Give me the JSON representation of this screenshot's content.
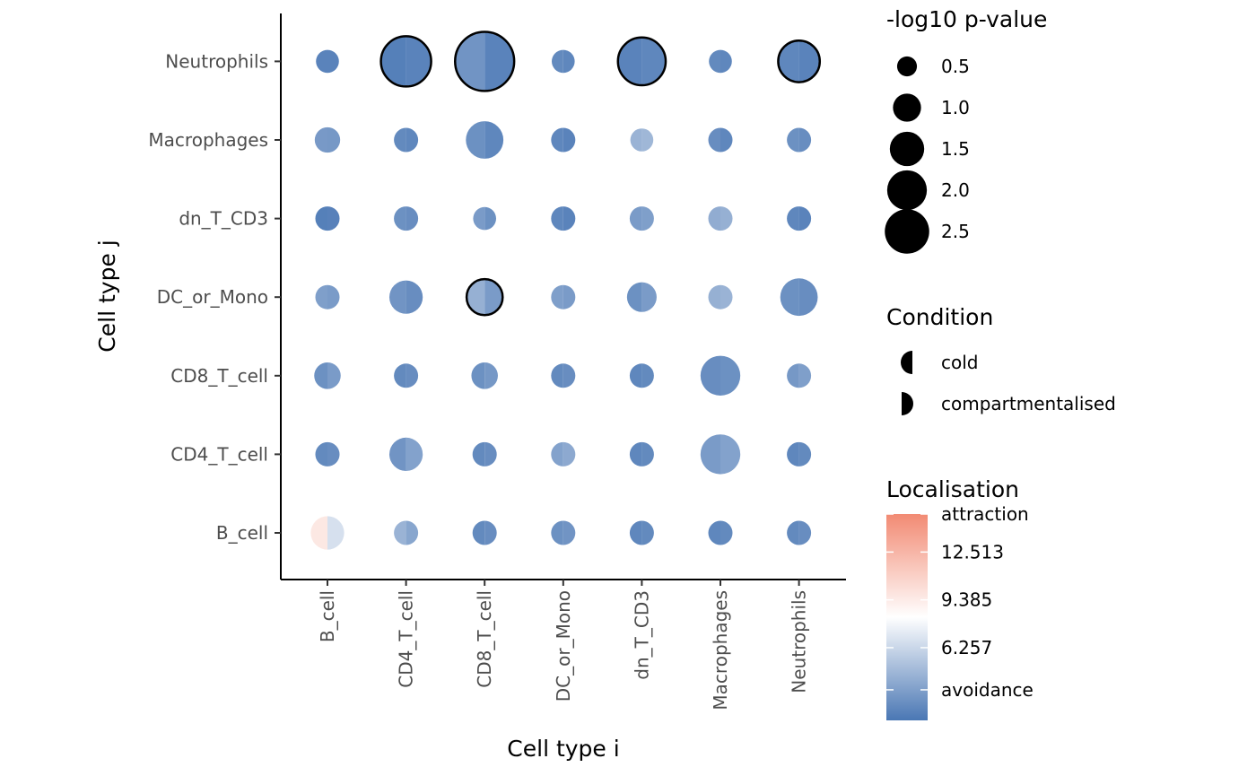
{
  "chart_data": {
    "type": "scatter",
    "subtype": "split-dot-matrix",
    "xlabel": "Cell type i",
    "ylabel": "Cell type j",
    "x_categories": [
      "B_cell",
      "CD4_T_cell",
      "CD8_T_cell",
      "DC_or_Mono",
      "dn_T_CD3",
      "Macrophages",
      "Neutrophils"
    ],
    "y_categories": [
      "B_cell",
      "CD4_T_cell",
      "CD8_T_cell",
      "DC_or_Mono",
      "dn_T_CD3",
      "Macrophages",
      "Neutrophils"
    ],
    "conditions": [
      "cold",
      "compartmentalised"
    ],
    "size_legend": {
      "title": "-log10 p-value",
      "breaks": [
        0.5,
        1.0,
        1.5,
        2.0,
        2.5
      ],
      "labels": [
        "0.5",
        "1.0",
        "1.5",
        "2.0",
        "2.5"
      ]
    },
    "shape_legend": {
      "title": "Condition",
      "labels": [
        "cold",
        "compartmentalised"
      ]
    },
    "color_legend": {
      "title": "Localisation",
      "labels": [
        "attraction",
        "12.513",
        "9.385",
        "6.257",
        "avoidance"
      ],
      "label_values": [
        15.0,
        12.513,
        9.385,
        6.257,
        3.5
      ],
      "min": 1.5,
      "max": 15.0,
      "low_color": "#4a77b4",
      "mid_color": "#ffffff",
      "high_color": "#f28a73",
      "midpoint": 9.385
    },
    "outline_color": "#000000",
    "points": [
      {
        "x": "B_cell",
        "y": "Neutrophils",
        "cold": {
          "pval": 0.45,
          "loc": 2.2
        },
        "compartmentalised": {
          "pval": 0.45,
          "loc": 2.2
        },
        "significant": false
      },
      {
        "x": "CD4_T_cell",
        "y": "Neutrophils",
        "cold": {
          "pval": 2.0,
          "loc": 2.0
        },
        "compartmentalised": {
          "pval": 2.0,
          "loc": 2.2
        },
        "significant": true
      },
      {
        "x": "CD8_T_cell",
        "y": "Neutrophils",
        "cold": {
          "pval": 2.8,
          "loc": 3.2
        },
        "compartmentalised": {
          "pval": 2.8,
          "loc": 2.2
        },
        "significant": true
      },
      {
        "x": "DC_or_Mono",
        "y": "Neutrophils",
        "cold": {
          "pval": 0.45,
          "loc": 2.6
        },
        "compartmentalised": {
          "pval": 0.45,
          "loc": 2.4
        },
        "significant": false
      },
      {
        "x": "dn_T_CD3",
        "y": "Neutrophils",
        "cold": {
          "pval": 1.8,
          "loc": 2.2
        },
        "compartmentalised": {
          "pval": 1.8,
          "loc": 2.4
        },
        "significant": true
      },
      {
        "x": "Macrophages",
        "y": "Neutrophils",
        "cold": {
          "pval": 0.45,
          "loc": 2.6
        },
        "compartmentalised": {
          "pval": 0.45,
          "loc": 2.4
        },
        "significant": false
      },
      {
        "x": "Neutrophils",
        "y": "Neutrophils",
        "cold": {
          "pval": 1.35,
          "loc": 2.4
        },
        "compartmentalised": {
          "pval": 1.35,
          "loc": 2.2
        },
        "significant": true
      },
      {
        "x": "B_cell",
        "y": "Macrophages",
        "cold": {
          "pval": 0.55,
          "loc": 3.5
        },
        "compartmentalised": {
          "pval": 0.55,
          "loc": 3.4
        },
        "significant": false
      },
      {
        "x": "CD4_T_cell",
        "y": "Macrophages",
        "cold": {
          "pval": 0.5,
          "loc": 2.6
        },
        "compartmentalised": {
          "pval": 0.5,
          "loc": 2.4
        },
        "significant": false
      },
      {
        "x": "CD8_T_cell",
        "y": "Macrophages",
        "cold": {
          "pval": 1.2,
          "loc": 3.0
        },
        "compartmentalised": {
          "pval": 1.2,
          "loc": 2.4
        },
        "significant": false
      },
      {
        "x": "DC_or_Mono",
        "y": "Macrophages",
        "cold": {
          "pval": 0.5,
          "loc": 2.4
        },
        "compartmentalised": {
          "pval": 0.5,
          "loc": 2.2
        },
        "significant": false
      },
      {
        "x": "dn_T_CD3",
        "y": "Macrophages",
        "cold": {
          "pval": 0.45,
          "loc": 5.0
        },
        "compartmentalised": {
          "pval": 0.45,
          "loc": 5.2
        },
        "significant": false
      },
      {
        "x": "Macrophages",
        "y": "Macrophages",
        "cold": {
          "pval": 0.5,
          "loc": 2.8
        },
        "compartmentalised": {
          "pval": 0.5,
          "loc": 2.4
        },
        "significant": false
      },
      {
        "x": "Neutrophils",
        "y": "Macrophages",
        "cold": {
          "pval": 0.5,
          "loc": 3.0
        },
        "compartmentalised": {
          "pval": 0.5,
          "loc": 2.8
        },
        "significant": false
      },
      {
        "x": "B_cell",
        "y": "dn_T_CD3",
        "cold": {
          "pval": 0.5,
          "loc": 2.0
        },
        "compartmentalised": {
          "pval": 0.5,
          "loc": 2.1
        },
        "significant": false
      },
      {
        "x": "CD4_T_cell",
        "y": "dn_T_CD3",
        "cold": {
          "pval": 0.5,
          "loc": 3.0
        },
        "compartmentalised": {
          "pval": 0.5,
          "loc": 2.8
        },
        "significant": false
      },
      {
        "x": "CD8_T_cell",
        "y": "dn_T_CD3",
        "cold": {
          "pval": 0.45,
          "loc": 3.6
        },
        "compartmentalised": {
          "pval": 0.45,
          "loc": 3.0
        },
        "significant": false
      },
      {
        "x": "DC_or_Mono",
        "y": "dn_T_CD3",
        "cold": {
          "pval": 0.5,
          "loc": 2.4
        },
        "compartmentalised": {
          "pval": 0.5,
          "loc": 2.2
        },
        "significant": false
      },
      {
        "x": "dn_T_CD3",
        "y": "dn_T_CD3",
        "cold": {
          "pval": 0.5,
          "loc": 3.6
        },
        "compartmentalised": {
          "pval": 0.5,
          "loc": 3.8
        },
        "significant": false
      },
      {
        "x": "Macrophages",
        "y": "dn_T_CD3",
        "cold": {
          "pval": 0.5,
          "loc": 4.6
        },
        "compartmentalised": {
          "pval": 0.5,
          "loc": 4.8
        },
        "significant": false
      },
      {
        "x": "Neutrophils",
        "y": "dn_T_CD3",
        "cold": {
          "pval": 0.5,
          "loc": 2.4
        },
        "compartmentalised": {
          "pval": 0.5,
          "loc": 2.2
        },
        "significant": false
      },
      {
        "x": "B_cell",
        "y": "DC_or_Mono",
        "cold": {
          "pval": 0.5,
          "loc": 3.8
        },
        "compartmentalised": {
          "pval": 0.5,
          "loc": 3.6
        },
        "significant": false
      },
      {
        "x": "CD4_T_cell",
        "y": "DC_or_Mono",
        "cold": {
          "pval": 0.95,
          "loc": 3.2
        },
        "compartmentalised": {
          "pval": 0.95,
          "loc": 2.8
        },
        "significant": false
      },
      {
        "x": "CD8_T_cell",
        "y": "DC_or_Mono",
        "cold": {
          "pval": 1.0,
          "loc": 4.8
        },
        "compartmentalised": {
          "pval": 1.0,
          "loc": 3.6
        },
        "significant": true
      },
      {
        "x": "DC_or_Mono",
        "y": "DC_or_Mono",
        "cold": {
          "pval": 0.5,
          "loc": 3.8
        },
        "compartmentalised": {
          "pval": 0.5,
          "loc": 3.6
        },
        "significant": false
      },
      {
        "x": "dn_T_CD3",
        "y": "DC_or_Mono",
        "cold": {
          "pval": 0.75,
          "loc": 3.0
        },
        "compartmentalised": {
          "pval": 0.75,
          "loc": 3.6
        },
        "significant": false
      },
      {
        "x": "Macrophages",
        "y": "DC_or_Mono",
        "cold": {
          "pval": 0.5,
          "loc": 4.8
        },
        "compartmentalised": {
          "pval": 0.5,
          "loc": 5.0
        },
        "significant": false
      },
      {
        "x": "Neutrophils",
        "y": "DC_or_Mono",
        "cold": {
          "pval": 1.2,
          "loc": 3.0
        },
        "compartmentalised": {
          "pval": 1.2,
          "loc": 2.8
        },
        "significant": false
      },
      {
        "x": "B_cell",
        "y": "CD8_T_cell",
        "cold": {
          "pval": 0.6,
          "loc": 3.0
        },
        "compartmentalised": {
          "pval": 0.6,
          "loc": 3.6
        },
        "significant": false
      },
      {
        "x": "CD4_T_cell",
        "y": "CD8_T_cell",
        "cold": {
          "pval": 0.5,
          "loc": 2.6
        },
        "compartmentalised": {
          "pval": 0.5,
          "loc": 2.8
        },
        "significant": false
      },
      {
        "x": "CD8_T_cell",
        "y": "CD8_T_cell",
        "cold": {
          "pval": 0.6,
          "loc": 3.0
        },
        "compartmentalised": {
          "pval": 0.6,
          "loc": 3.4
        },
        "significant": false
      },
      {
        "x": "DC_or_Mono",
        "y": "CD8_T_cell",
        "cold": {
          "pval": 0.5,
          "loc": 2.6
        },
        "compartmentalised": {
          "pval": 0.5,
          "loc": 2.8
        },
        "significant": false
      },
      {
        "x": "dn_T_CD3",
        "y": "CD8_T_cell",
        "cold": {
          "pval": 0.5,
          "loc": 2.4
        },
        "compartmentalised": {
          "pval": 0.5,
          "loc": 2.6
        },
        "significant": false
      },
      {
        "x": "Macrophages",
        "y": "CD8_T_cell",
        "cold": {
          "pval": 1.35,
          "loc": 2.8
        },
        "compartmentalised": {
          "pval": 1.35,
          "loc": 3.0
        },
        "significant": false
      },
      {
        "x": "Neutrophils",
        "y": "CD8_T_cell",
        "cold": {
          "pval": 0.5,
          "loc": 3.4
        },
        "compartmentalised": {
          "pval": 0.5,
          "loc": 3.8
        },
        "significant": false
      },
      {
        "x": "B_cell",
        "y": "CD4_T_cell",
        "cold": {
          "pval": 0.5,
          "loc": 2.6
        },
        "compartmentalised": {
          "pval": 0.5,
          "loc": 2.8
        },
        "significant": false
      },
      {
        "x": "CD4_T_cell",
        "y": "CD4_T_cell",
        "cold": {
          "pval": 0.95,
          "loc": 3.2
        },
        "compartmentalised": {
          "pval": 0.95,
          "loc": 4.0
        },
        "significant": false
      },
      {
        "x": "CD8_T_cell",
        "y": "CD4_T_cell",
        "cold": {
          "pval": 0.5,
          "loc": 2.6
        },
        "compartmentalised": {
          "pval": 0.5,
          "loc": 2.8
        },
        "significant": false
      },
      {
        "x": "DC_or_Mono",
        "y": "CD4_T_cell",
        "cold": {
          "pval": 0.5,
          "loc": 4.0
        },
        "compartmentalised": {
          "pval": 0.5,
          "loc": 4.4
        },
        "significant": false
      },
      {
        "x": "dn_T_CD3",
        "y": "CD4_T_cell",
        "cold": {
          "pval": 0.5,
          "loc": 2.4
        },
        "compartmentalised": {
          "pval": 0.5,
          "loc": 2.6
        },
        "significant": false
      },
      {
        "x": "Macrophages",
        "y": "CD4_T_cell",
        "cold": {
          "pval": 1.35,
          "loc": 3.6
        },
        "compartmentalised": {
          "pval": 1.35,
          "loc": 4.0
        },
        "significant": false
      },
      {
        "x": "Neutrophils",
        "y": "CD4_T_cell",
        "cold": {
          "pval": 0.5,
          "loc": 2.4
        },
        "compartmentalised": {
          "pval": 0.5,
          "loc": 2.6
        },
        "significant": false
      },
      {
        "x": "B_cell",
        "y": "B_cell",
        "cold": {
          "pval": 0.95,
          "loc": 10.5
        },
        "compartmentalised": {
          "pval": 0.95,
          "loc": 7.6
        },
        "significant": false
      },
      {
        "x": "CD4_T_cell",
        "y": "B_cell",
        "cold": {
          "pval": 0.5,
          "loc": 5.0
        },
        "compartmentalised": {
          "pval": 0.5,
          "loc": 4.2
        },
        "significant": false
      },
      {
        "x": "CD8_T_cell",
        "y": "B_cell",
        "cold": {
          "pval": 0.5,
          "loc": 2.6
        },
        "compartmentalised": {
          "pval": 0.5,
          "loc": 2.8
        },
        "significant": false
      },
      {
        "x": "DC_or_Mono",
        "y": "B_cell",
        "cold": {
          "pval": 0.5,
          "loc": 3.0
        },
        "compartmentalised": {
          "pval": 0.5,
          "loc": 3.2
        },
        "significant": false
      },
      {
        "x": "dn_T_CD3",
        "y": "B_cell",
        "cold": {
          "pval": 0.5,
          "loc": 2.4
        },
        "compartmentalised": {
          "pval": 0.5,
          "loc": 2.6
        },
        "significant": false
      },
      {
        "x": "Macrophages",
        "y": "B_cell",
        "cold": {
          "pval": 0.5,
          "loc": 2.4
        },
        "compartmentalised": {
          "pval": 0.5,
          "loc": 2.6
        },
        "significant": false
      },
      {
        "x": "Neutrophils",
        "y": "B_cell",
        "cold": {
          "pval": 0.5,
          "loc": 2.6
        },
        "compartmentalised": {
          "pval": 0.5,
          "loc": 2.8
        },
        "significant": false
      }
    ]
  }
}
